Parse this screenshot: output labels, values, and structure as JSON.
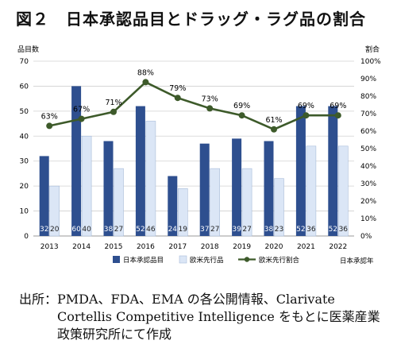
{
  "figure_title": "図２　日本承認品目とドラッグ・ラグ品の割合",
  "source": {
    "label": "出所：",
    "text": "PMDA、FDA、EMA の各公開情報、Clarivate Cortellis Competitive Intelligence をもとに医薬産業政策研究所にて作成"
  },
  "chart_data": {
    "type": "bar",
    "title": "",
    "categories": [
      "2013",
      "2014",
      "2015",
      "2016",
      "2017",
      "2018",
      "2019",
      "2020",
      "2021",
      "2022"
    ],
    "ylabel": "品目数",
    "y2label": "割合",
    "xlabel": "日本承認年",
    "ylim": [
      0,
      70
    ],
    "y_ticks": [
      0,
      10,
      20,
      30,
      40,
      50,
      60,
      70
    ],
    "y2lim": [
      0,
      100
    ],
    "y2_ticks": [
      "0%",
      "10%",
      "20%",
      "30%",
      "40%",
      "50%",
      "60%",
      "70%",
      "80%",
      "90%",
      "100%"
    ],
    "grid": true,
    "legend_position": "bottom",
    "series": [
      {
        "name": "日本承認品目",
        "type": "bar",
        "color": "#2e4f8f",
        "values": [
          32,
          60,
          38,
          52,
          24,
          37,
          39,
          38,
          52,
          52
        ]
      },
      {
        "name": "欧米先行品",
        "type": "bar",
        "color": "#dbe6f6",
        "values": [
          20,
          40,
          27,
          46,
          19,
          27,
          27,
          23,
          36,
          36
        ]
      },
      {
        "name": "欧米先行割合",
        "type": "line",
        "axis": "right",
        "color": "#3d5a2a",
        "values": [
          63,
          67,
          71,
          88,
          79,
          73,
          69,
          61,
          69,
          69
        ],
        "labels": [
          "63%",
          "67%",
          "71%",
          "88%",
          "79%",
          "73%",
          "69%",
          "61%",
          "69%",
          "69%"
        ]
      }
    ]
  }
}
